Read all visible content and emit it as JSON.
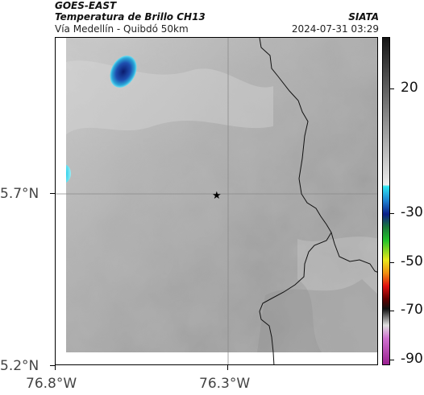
{
  "header": {
    "satellite": "GOES-EAST",
    "product": "Temperatura de Brillo CH13",
    "route": "Vía Medellín - Quibdó 50km",
    "organization": "SIATA",
    "timestamp": "2024-07-31 03:29"
  },
  "axes": {
    "lat_ticks": [
      "5.7°N",
      "5.2°N"
    ],
    "lon_ticks": [
      "76.8°W",
      "76.3°W"
    ]
  },
  "colorbar": {
    "labels": [
      "20",
      "-30",
      "-50",
      "-70",
      "-90"
    ]
  },
  "colors": {
    "cloud_cold": "#1e3f9e",
    "cloud_edge": "#33c8e8",
    "border_line": "#111111",
    "grid_line": "#8a8a8a"
  }
}
